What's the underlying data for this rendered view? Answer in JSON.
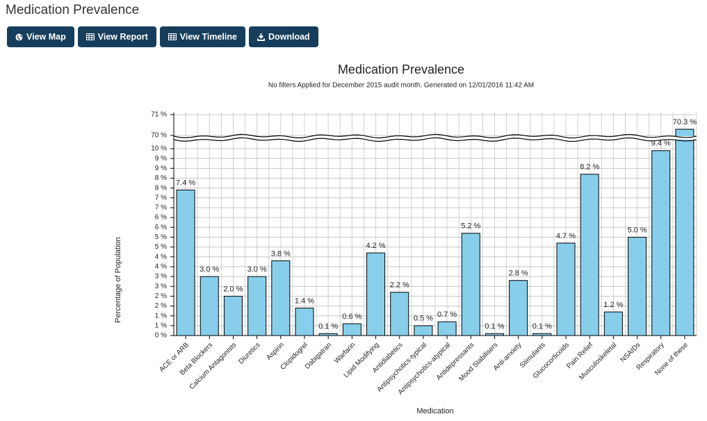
{
  "header": {
    "title": "Medication Prevalence"
  },
  "buttons": [
    "View Map",
    "View Report",
    "View Timeline",
    "Download"
  ],
  "chart_data": {
    "type": "bar",
    "title": "Medication Prevalence",
    "subtitle": "No filters Applied for December 2015 audit month. Generated on 12/01/2016 11:42 AM",
    "x_label": "Medication",
    "y_label": "Percentage of Population",
    "categories": [
      "ACE or ARB",
      "Beta Blockers",
      "Calcium Antagonists",
      "Diuretics",
      "Aspirin",
      "Clopidogrel",
      "Dabigatran",
      "Warfarin",
      "Lipid Modifying",
      "Antidiabetics",
      "Antipsychotics-typical",
      "Antipsychotics-atypical",
      "Antidepressants",
      "Mood Stabilisers",
      "Anti-anxiety",
      "Stimulants",
      "Glucocorticoids",
      "Pain Relief",
      "Musculoskeletal",
      "NSAIDs",
      "Respiratory",
      "None of these"
    ],
    "values": [
      7.4,
      3.0,
      2.0,
      3.0,
      3.8,
      1.4,
      0.1,
      0.6,
      4.2,
      2.2,
      0.5,
      0.7,
      5.2,
      0.1,
      2.8,
      0.1,
      4.7,
      8.2,
      1.2,
      5.0,
      9.4,
      70.3
    ],
    "value_labels": [
      "7.4 %",
      "3.0 %",
      "2.0 %",
      "3.0 %",
      "3.8 %",
      "1.4 %",
      "0.1 %",
      "0.6 %",
      "4.2 %",
      "2.2 %",
      "0.5 %",
      "0.7 %",
      "5.2 %",
      "0.1 %",
      "2.8 %",
      "0.1 %",
      "4.7 %",
      "8.2 %",
      "1.2 %",
      "5.0 %",
      "9.4 %",
      "70.3 %"
    ],
    "color": "#87ceeb",
    "ylim": [
      0,
      9.5
    ],
    "yticks": [
      {
        "value": 0,
        "label": "0 %"
      },
      {
        "value": 0.5,
        "label": "1 %"
      },
      {
        "value": 1,
        "label": "1 %"
      },
      {
        "value": 1.5,
        "label": "2 %"
      },
      {
        "value": 2,
        "label": "2 %"
      },
      {
        "value": 2.5,
        "label": "3 %"
      },
      {
        "value": 3,
        "label": "3 %"
      },
      {
        "value": 3.5,
        "label": "4 %"
      },
      {
        "value": 4,
        "label": "4 %"
      },
      {
        "value": 4.5,
        "label": "5 %"
      },
      {
        "value": 5,
        "label": "5 %"
      },
      {
        "value": 5.5,
        "label": "6 %"
      },
      {
        "value": 6,
        "label": "6 %"
      },
      {
        "value": 6.5,
        "label": "7 %"
      },
      {
        "value": 7,
        "label": "7 %"
      },
      {
        "value": 7.5,
        "label": "8 %"
      },
      {
        "value": 8,
        "label": "8 %"
      },
      {
        "value": 8.5,
        "label": "9 %"
      },
      {
        "value": 9,
        "label": "9 %"
      },
      {
        "value": 9.5,
        "label": "10 %"
      }
    ],
    "y2lim": [
      69.8,
      71.1
    ],
    "y2ticks": [
      {
        "value": 70,
        "label": "70 %"
      },
      {
        "value": 71,
        "label": "71 %"
      }
    ],
    "grid": true
  }
}
